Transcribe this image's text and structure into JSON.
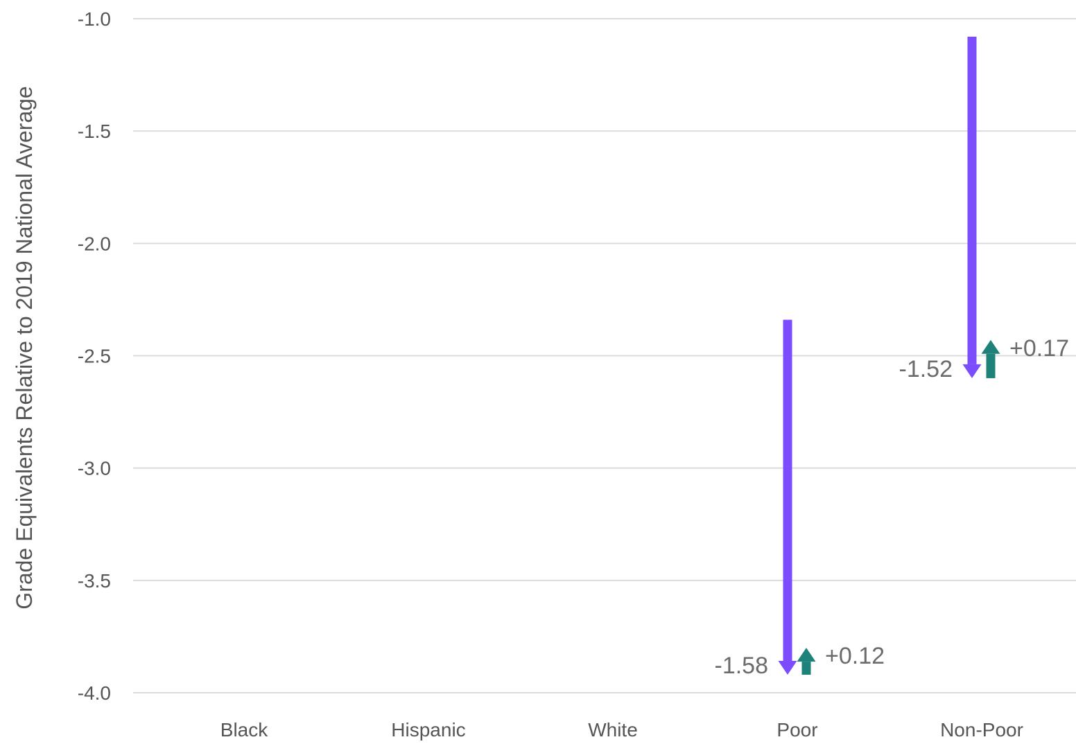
{
  "chart_data": {
    "type": "arrow",
    "title": "",
    "xlabel": "",
    "ylabel": "Grade Equivalents Relative to 2019 National Average",
    "ylim": [
      -4.0,
      -1.0
    ],
    "yticks": [
      -1.0,
      -1.5,
      -2.0,
      -2.5,
      -3.0,
      -3.5,
      -4.0
    ],
    "ytick_labels": [
      "-1.0",
      "-1.5",
      "-2.0",
      "-2.5",
      "-3.0",
      "-3.5",
      "-4.0"
    ],
    "grid": true,
    "categories": [
      "Black",
      "Hispanic",
      "White",
      "Poor",
      "Non-Poor"
    ],
    "series": [
      {
        "color": "#7c4dff",
        "direction": "down",
        "values": [
          null,
          null,
          null,
          {
            "start": -2.34,
            "end": -3.92,
            "label": "-1.58"
          },
          {
            "start": -1.08,
            "end": -2.6,
            "label": "-1.52"
          }
        ]
      },
      {
        "color": "#1f827a",
        "direction": "up",
        "values": [
          null,
          null,
          null,
          {
            "start": -3.92,
            "end": -3.8,
            "label": "+0.12"
          },
          {
            "start": -2.6,
            "end": -2.43,
            "label": "+0.17"
          }
        ]
      }
    ]
  }
}
